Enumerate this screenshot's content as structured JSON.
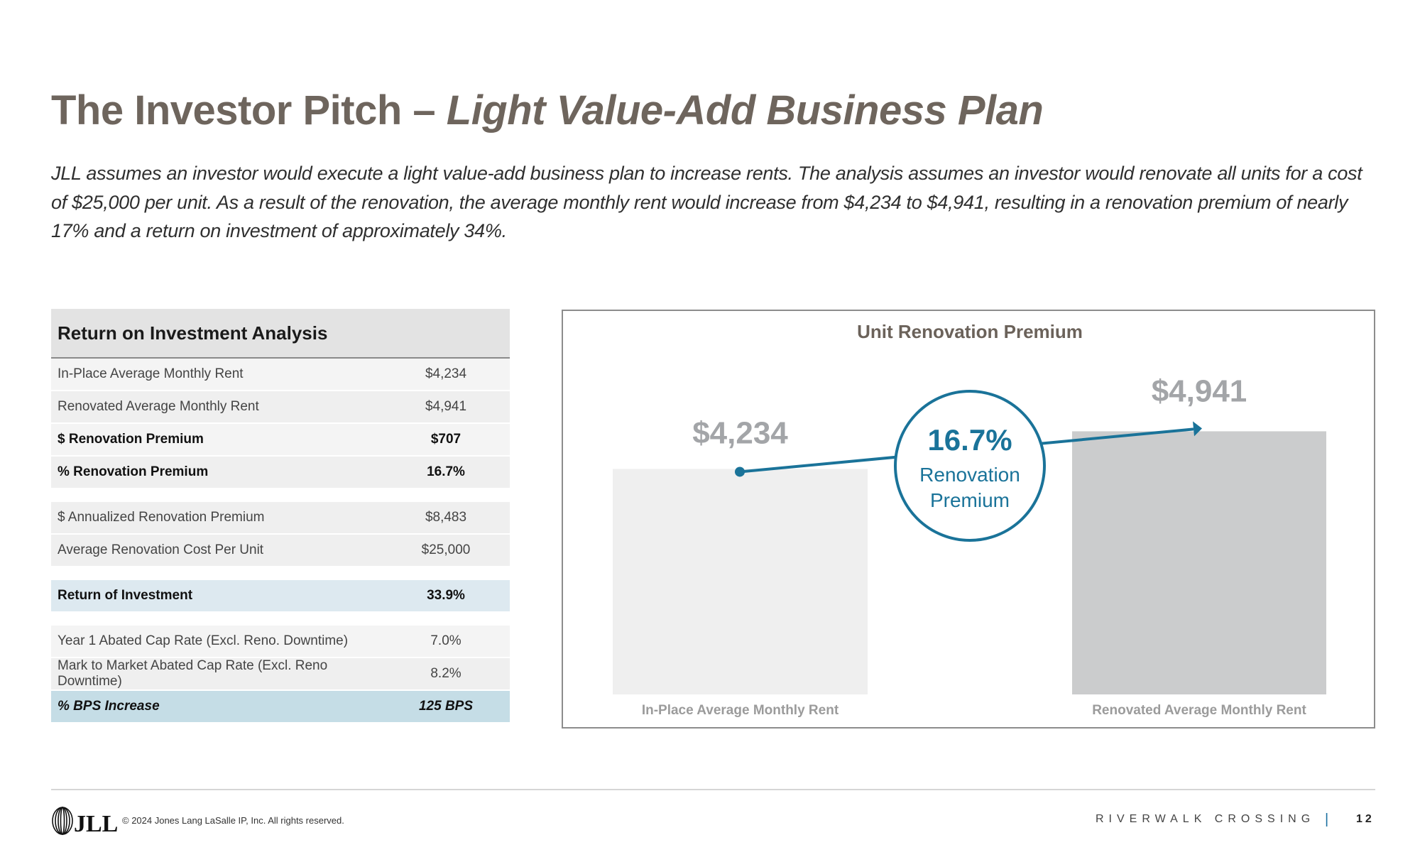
{
  "header": {
    "title_plain": "The Investor Pitch – ",
    "title_italic": "Light Value-Add Business Plan",
    "intro": "JLL assumes an investor would execute a light value-add business plan to increase rents. The analysis assumes an investor would renovate all units for a cost of $25,000 per unit. As a result of the renovation, the average monthly rent would increase from $4,234 to $4,941, resulting in a renovation premium of nearly 17% and a return on investment of approximately 34%."
  },
  "table": {
    "title": "Return on Investment Analysis",
    "groups": [
      [
        {
          "label": "In-Place Average Monthly Rent",
          "value": "$4,234"
        },
        {
          "label": "Renovated Average Monthly Rent",
          "value": "$4,941"
        },
        {
          "label": "$ Renovation Premium",
          "value": "$707"
        },
        {
          "label": "% Renovation Premium",
          "value": "16.7%"
        }
      ],
      [
        {
          "label": "$ Annualized Renovation Premium",
          "value": "$8,483"
        },
        {
          "label": "Average Renovation Cost Per Unit",
          "value": "$25,000"
        }
      ],
      [
        {
          "label": "Return of Investment",
          "value": "33.9%"
        }
      ],
      [
        {
          "label": "Year 1 Abated Cap Rate (Excl. Reno. Downtime)",
          "value": "7.0%"
        },
        {
          "label": "Mark to Market Abated Cap Rate (Excl. Reno Downtime)",
          "value": "8.2%"
        },
        {
          "label": "% BPS Increase",
          "value": "125 BPS"
        }
      ]
    ]
  },
  "chart_data": {
    "type": "bar",
    "title": "Unit Renovation Premium",
    "categories": [
      "In-Place Average Monthly Rent",
      "Renovated Average Monthly Rent"
    ],
    "values": [
      4234,
      4941
    ],
    "data_labels": [
      "$4,234",
      "$4,941"
    ],
    "ylim": [
      0,
      7200
    ],
    "grid": false,
    "bar_colors": [
      "#efefef",
      "#cbcccd"
    ],
    "annotation": {
      "value": "16.7%",
      "line1": "Renovation",
      "line2": "Premium",
      "color": "#1a7399"
    }
  },
  "footer": {
    "logo": "JLL",
    "copyright": "© 2024 Jones Lang LaSalle IP, Inc. All rights reserved.",
    "project": "RIVERWALK CROSSING",
    "separator": "|",
    "page": "12"
  }
}
